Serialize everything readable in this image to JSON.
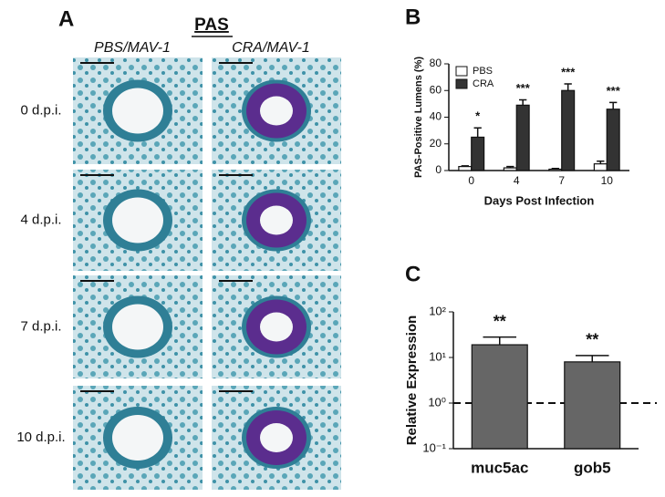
{
  "panel_a": {
    "letter": "A",
    "title": "PAS",
    "columns": [
      "PBS/MAV-1",
      "CRA/MAV-1"
    ],
    "rows": [
      "0 d.p.i.",
      "4 d.p.i.",
      "7 d.p.i.",
      "10 d.p.i."
    ]
  },
  "chart_data": [
    {
      "type": "bar",
      "panel": "B",
      "ylabel": "PAS-Positive Lumens (%)",
      "xlabel": "Days Post Infection",
      "categories": [
        "0",
        "4",
        "7",
        "10"
      ],
      "series": [
        {
          "name": "PBS",
          "color": "#ffffff",
          "values": [
            3,
            2,
            1,
            5
          ],
          "errors": [
            0.5,
            1,
            0.5,
            2
          ]
        },
        {
          "name": "CRA",
          "color": "#333333",
          "values": [
            25,
            49,
            60,
            46
          ],
          "errors": [
            7,
            4,
            5,
            5
          ]
        }
      ],
      "annotations": [
        "*",
        "***",
        "***",
        "***"
      ],
      "ylim": [
        0,
        80
      ],
      "yticks": [
        0,
        20,
        40,
        60,
        80
      ],
      "legend": "top-left"
    },
    {
      "type": "bar",
      "panel": "C",
      "ylabel": "Relative Expression",
      "log_scale": true,
      "categories": [
        "muc5ac",
        "gob5"
      ],
      "series": [
        {
          "color": "#666666",
          "values": [
            19,
            8
          ],
          "errors": [
            9,
            3
          ]
        }
      ],
      "annotations": [
        "**",
        "**"
      ],
      "reference_line": 1,
      "ylim": [
        0.1,
        100
      ],
      "yticks": [
        {
          "value": 0.1,
          "label": "10⁻¹"
        },
        {
          "value": 1,
          "label": "10⁰"
        },
        {
          "value": 10,
          "label": "10¹"
        },
        {
          "value": 100,
          "label": "10²"
        }
      ]
    }
  ]
}
